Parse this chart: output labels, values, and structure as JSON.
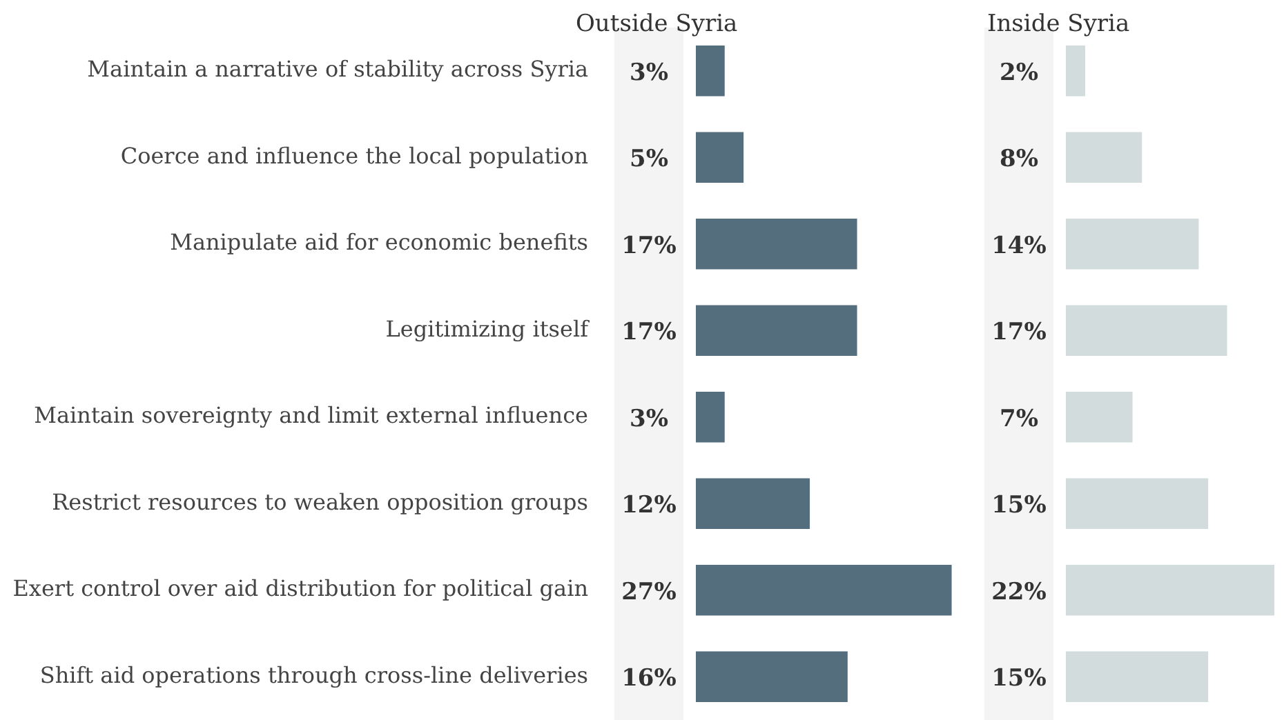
{
  "chart_data": [
    {
      "type": "bar",
      "orientation": "horizontal",
      "title": "Outside Syria",
      "tick_labels": "y",
      "color": "#546e7d",
      "categories": [
        "Maintain a narrative of stability across Syria",
        "Coerce and influence the local population",
        "Manipulate aid for economic benefits",
        "Legitimizing itself",
        "Maintain sovereignty and limit external influence",
        "Restrict resources to weaken opposition groups",
        "Exert control over aid distribution for political gain",
        "Shift aid operations through cross-line deliveries"
      ],
      "values": [
        3,
        5,
        17,
        17,
        3,
        12,
        27,
        16
      ],
      "value_labels": [
        "3%",
        "5%",
        "17%",
        "17%",
        "3%",
        "12%",
        "27%",
        "16%"
      ]
    },
    {
      "type": "bar",
      "orientation": "horizontal",
      "title": "Inside Syria",
      "tick_labels": false,
      "color": "#d2dcdc",
      "categories": [
        null,
        null,
        null,
        null,
        null,
        null,
        null,
        null
      ],
      "values": [
        2,
        8,
        14,
        17,
        7,
        15,
        22,
        15
      ],
      "value_labels": [
        "2%",
        "8%",
        "14%",
        "17%",
        "7%",
        "15%",
        "22%",
        "15%"
      ]
    }
  ]
}
